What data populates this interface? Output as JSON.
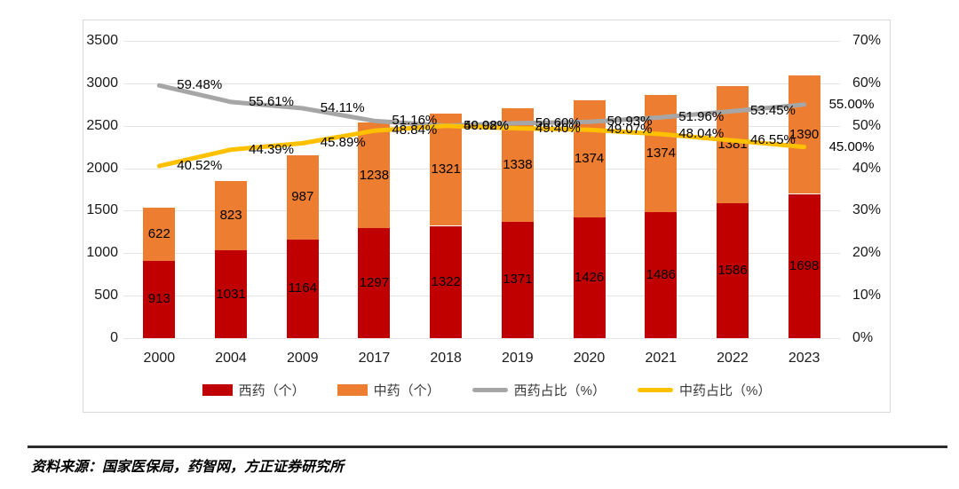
{
  "chart_data": {
    "type": "bar",
    "subtype": "stacked-bars-with-percent-lines",
    "title": "",
    "categories": [
      "2000",
      "2004",
      "2009",
      "2017",
      "2018",
      "2019",
      "2020",
      "2021",
      "2022",
      "2023"
    ],
    "series": [
      {
        "name": "西药（个）",
        "type": "bar",
        "color": "#c00000",
        "values": [
          913,
          1031,
          1164,
          1297,
          1322,
          1371,
          1426,
          1486,
          1586,
          1698
        ]
      },
      {
        "name": "中药（个）",
        "type": "bar",
        "color": "#ed7d31",
        "values": [
          622,
          823,
          987,
          1238,
          1321,
          1338,
          1374,
          1374,
          1381,
          1390
        ]
      },
      {
        "name": "西药占比（%）",
        "type": "line",
        "axis": "right",
        "color": "#a6a6a6",
        "values": [
          59.48,
          55.61,
          54.11,
          51.16,
          50.02,
          50.6,
          50.93,
          51.96,
          53.45,
          55.0
        ],
        "labels": [
          "59.48%",
          "55.61%",
          "54.11%",
          "51.16%",
          "50.02%",
          "50.60%",
          "50.93%",
          "51.96%",
          "53.45%",
          "55.00%"
        ]
      },
      {
        "name": "中药占比（%）",
        "type": "line",
        "axis": "right",
        "color": "#ffc000",
        "values": [
          40.52,
          44.39,
          45.89,
          48.84,
          49.98,
          49.4,
          49.07,
          48.04,
          46.55,
          45.0
        ],
        "labels": [
          "40.52%",
          "44.39%",
          "45.89%",
          "48.84%",
          "49.98%",
          "49.40%",
          "49.07%",
          "48.04%",
          "46.55%",
          "45.00%"
        ]
      }
    ],
    "left_axis": {
      "min": 0,
      "max": 3500,
      "step": 500,
      "ticks": [
        "0",
        "500",
        "1000",
        "1500",
        "2000",
        "2500",
        "3000",
        "3500"
      ]
    },
    "right_axis": {
      "min": 0,
      "max": 70,
      "step": 10,
      "ticks": [
        "0%",
        "10%",
        "20%",
        "30%",
        "40%",
        "50%",
        "60%",
        "70%"
      ]
    },
    "grid": true,
    "legend_position": "bottom"
  },
  "source_note": "资料来源：国家医保局，药智网，方正证券研究所"
}
